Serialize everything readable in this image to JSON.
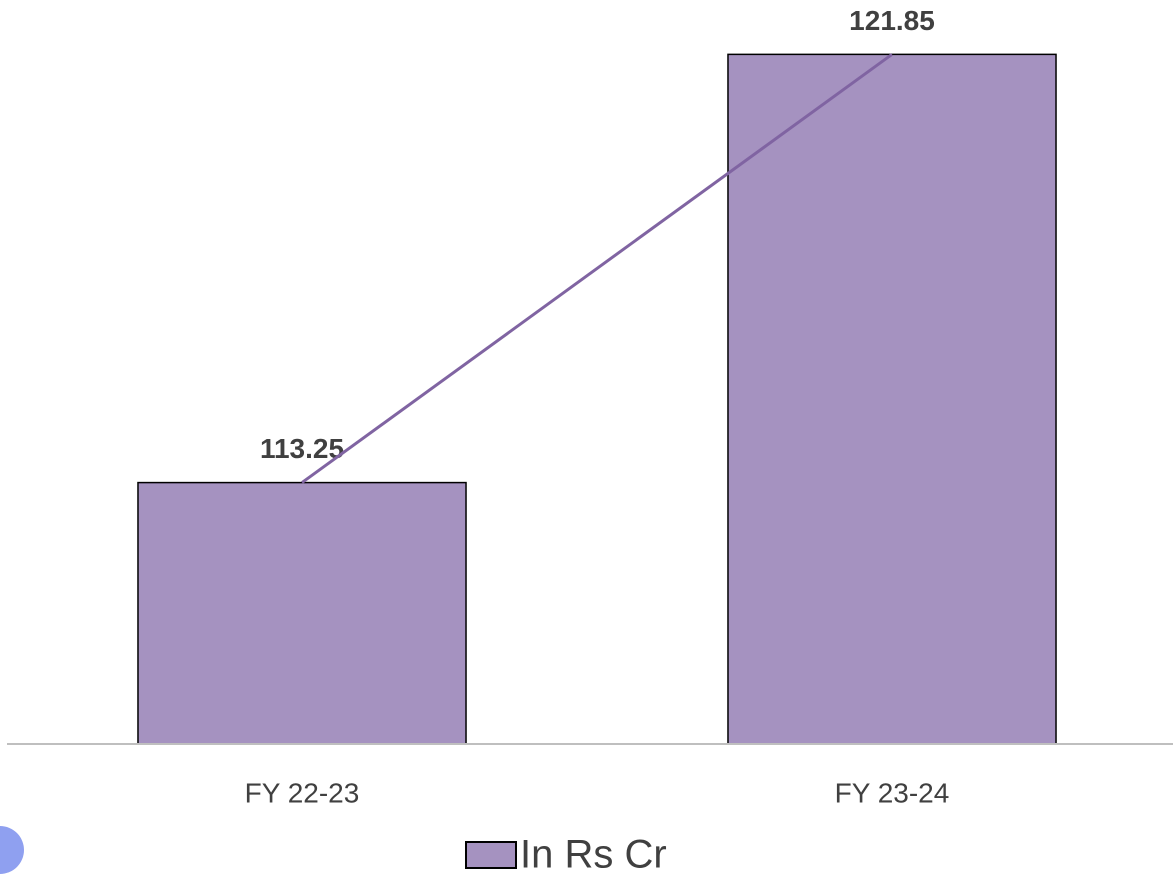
{
  "chart_data": {
    "type": "bar",
    "categories": [
      "FY 22-23",
      "FY 23-24"
    ],
    "series": [
      {
        "name": "In Rs Cr",
        "color": "#a592c0",
        "values": [
          113.25,
          121.85
        ]
      }
    ],
    "line_color": "#8064a2",
    "ylim": [
      108,
      122.5
    ],
    "legend": "bottom"
  }
}
